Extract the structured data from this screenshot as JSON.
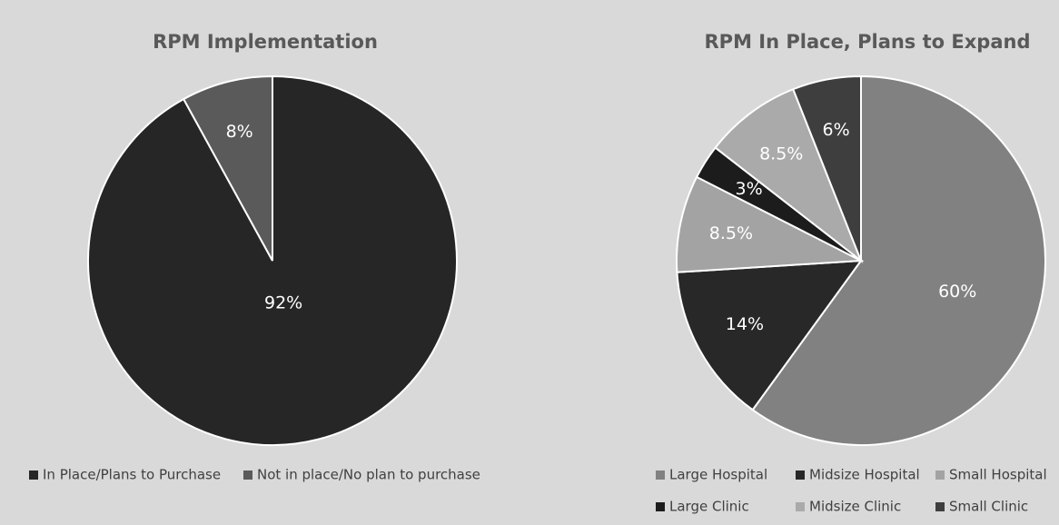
{
  "chart_data": [
    {
      "type": "pie",
      "title": "RPM Implementation",
      "categories": [
        "In Place/Plans to Purchase",
        "Not in place/No plan to purchase"
      ],
      "values": [
        92,
        8
      ],
      "value_labels": [
        "92%",
        "8%"
      ],
      "colors": [
        "#262626",
        "#5a5a5a"
      ]
    },
    {
      "type": "pie",
      "title": "RPM In Place, Plans to Expand",
      "categories": [
        "Large Hospital",
        "Midsize Hospital",
        "Small Hospital",
        "Large Clinic",
        "Midsize Clinic",
        "Small Clinic"
      ],
      "values": [
        60,
        14,
        8.5,
        3,
        8.5,
        6
      ],
      "value_labels": [
        "60%",
        "14%",
        "8.5%",
        "3%",
        "8.5%",
        "6%"
      ],
      "colors": [
        "#818181",
        "#282828",
        "#a3a3a3",
        "#1c1c1c",
        "#aaaaaa",
        "#3e3e3e"
      ]
    }
  ]
}
